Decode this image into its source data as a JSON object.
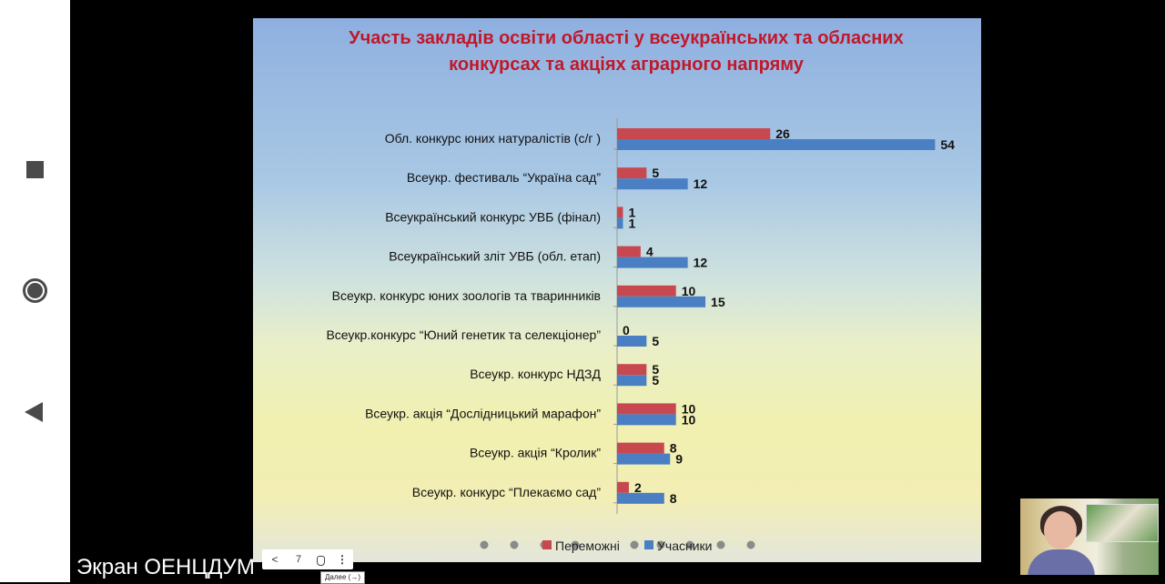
{
  "android_nav": {
    "icons": [
      "square-icon",
      "circle-icon",
      "back-triangle-icon"
    ]
  },
  "slide": {
    "title_line1": "Участь закладів освіти області у всеукраїнських та обласних",
    "title_line2": "конкурсах та акціях аграрного напряму"
  },
  "colors": {
    "winners": "#c8484f",
    "participants": "#4a7fc3",
    "title": "#c0182a"
  },
  "chart_data": {
    "type": "bar",
    "orientation": "horizontal",
    "title": "Участь закладів освіти області у всеукраїнських та обласних конкурсах та акціях аграрного напряму",
    "categories": [
      "Обл. конкурс юних натуралістів (с/г )",
      "Всеукр. фестиваль “Україна сад”",
      "Всеукраїнський конкурс УВБ (фінал)",
      "Всеукраїнський зліт УВБ (обл. етап)",
      "Всеукр. конкурс юних зоологів та тваринників",
      "Всеукр.конкурс “Юний генетик та селекціонер”",
      "Всеукр. конкурс  НДЗД",
      "Всеукр. акція “Дослідницький марафон”",
      "Всеукр. акція “Кролик”",
      "Всеукр. конкурс “Плекаємо сад”"
    ],
    "series": [
      {
        "name": "Переможні",
        "values": [
          26,
          5,
          1,
          4,
          10,
          0,
          5,
          10,
          8,
          2
        ]
      },
      {
        "name": "Учасники",
        "values": [
          54,
          12,
          1,
          12,
          15,
          5,
          5,
          10,
          9,
          8
        ]
      }
    ],
    "xlim": [
      0,
      60
    ],
    "grid": false,
    "legend": "bottom",
    "legend_labels": [
      "Переможні",
      "Учасники"
    ]
  },
  "toolbar": {
    "prev": "<",
    "slide_number": "7",
    "more": "⋮",
    "tooltip": "Далее (→)"
  },
  "screen_label": "Экран ОЕНЦДУМ"
}
